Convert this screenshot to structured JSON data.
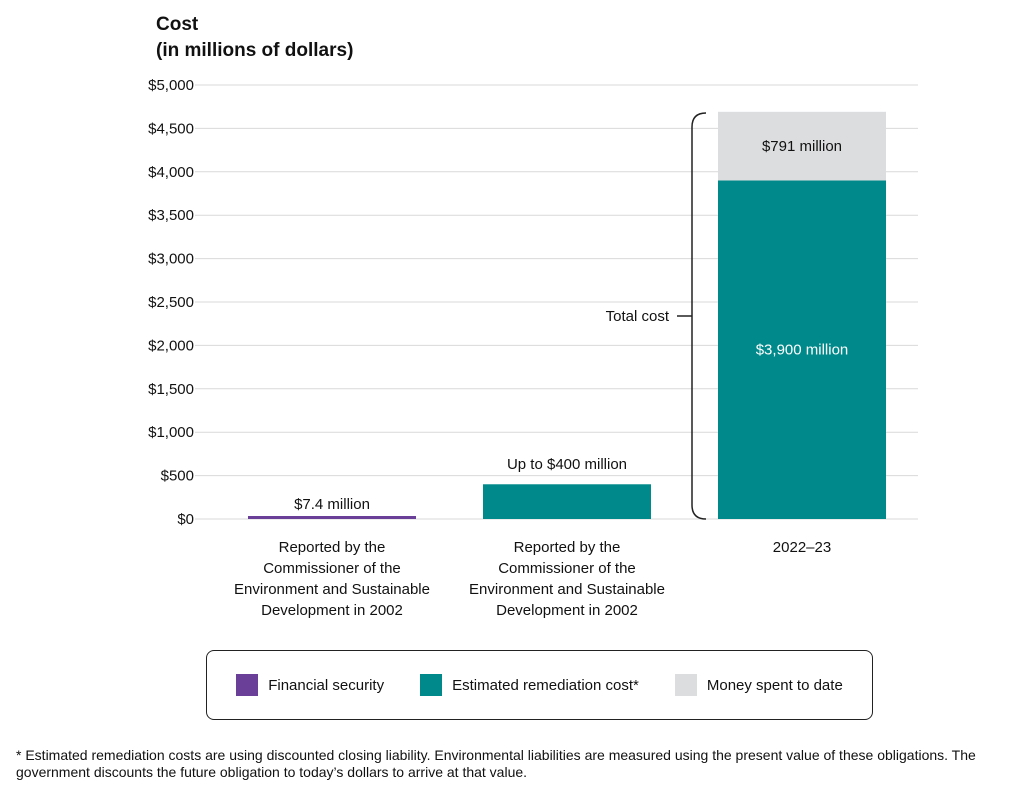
{
  "chart_data": {
    "type": "bar",
    "stacked": true,
    "title": "Cost",
    "subtitle": "(in millions of dollars)",
    "ylim": [
      0,
      5000
    ],
    "yticks": [
      0,
      500,
      1000,
      1500,
      2000,
      2500,
      3000,
      3500,
      4000,
      4500,
      5000
    ],
    "ytick_labels": [
      "$0",
      "$500",
      "$1,000",
      "$1,500",
      "$2,000",
      "$2,500",
      "$3,000",
      "$3,500",
      "$4,000",
      "$4,500",
      "$5,000"
    ],
    "grid": true,
    "categories": [
      [
        "Reported by the",
        "Commissioner of the",
        "Environment and Sustainable",
        "Development in 2002"
      ],
      [
        "Reported by the",
        "Commissioner of the",
        "Environment and Sustainable",
        "Development in 2002"
      ],
      [
        "2022–23"
      ]
    ],
    "series": [
      {
        "name": "Financial security",
        "color": "#6a3f97",
        "values": [
          7.4,
          0,
          0
        ]
      },
      {
        "name": "Estimated remediation cost*",
        "color": "#00898a",
        "values": [
          0,
          400,
          3900
        ]
      },
      {
        "name": "Money spent to date",
        "color": "#dcdddf",
        "values": [
          0,
          0,
          791
        ]
      }
    ],
    "data_labels": [
      "$7.4 million",
      "Up to $400 million",
      "$3,900 million",
      "$791 million"
    ],
    "annotation": "Total cost",
    "legend_position": "bottom"
  },
  "footnote": "* Estimated remediation costs are using discounted closing liability. Environmental liabilities are measured using the present value of these obligations. The government discounts the future obligation to today’s dollars to arrive at that value."
}
